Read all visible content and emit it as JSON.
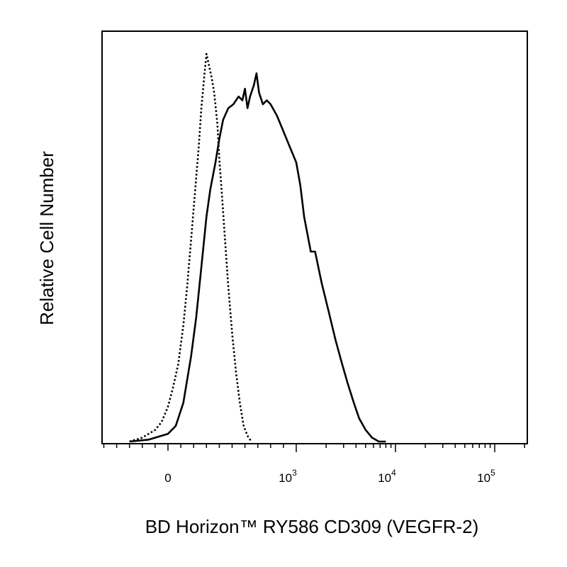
{
  "chart_data": {
    "type": "line",
    "title": "",
    "xlabel": "BD Horizon™ RY586 CD309 (VEGFR-2)",
    "ylabel": "Relative Cell Number",
    "x_scale": "biexponential",
    "x_ticks": [
      {
        "value": 0,
        "base": "0",
        "exp": ""
      },
      {
        "value": 1000,
        "base": "10",
        "exp": "3"
      },
      {
        "value": 10000,
        "base": "10",
        "exp": "4"
      },
      {
        "value": 100000,
        "base": "10",
        "exp": "5"
      }
    ],
    "y_ticks": [],
    "grid": false,
    "legend": "none",
    "series": [
      {
        "style": "dotted",
        "color": "#000000",
        "points": [
          [
            -300,
            0
          ],
          [
            -200,
            1
          ],
          [
            -100,
            3
          ],
          [
            -50,
            5
          ],
          [
            0,
            9
          ],
          [
            40,
            14
          ],
          [
            80,
            20
          ],
          [
            120,
            30
          ],
          [
            150,
            40
          ],
          [
            180,
            52
          ],
          [
            210,
            64
          ],
          [
            240,
            76
          ],
          [
            260,
            86
          ],
          [
            285,
            95
          ],
          [
            300,
            100
          ],
          [
            320,
            97
          ],
          [
            340,
            94
          ],
          [
            360,
            90
          ],
          [
            385,
            82
          ],
          [
            400,
            73
          ],
          [
            420,
            64
          ],
          [
            445,
            52
          ],
          [
            470,
            40
          ],
          [
            500,
            28
          ],
          [
            530,
            18
          ],
          [
            560,
            10
          ],
          [
            590,
            4
          ],
          [
            620,
            1.5
          ],
          [
            650,
            0
          ]
        ]
      },
      {
        "style": "solid",
        "color": "#000000",
        "points": [
          [
            -300,
            0
          ],
          [
            -150,
            0.5
          ],
          [
            0,
            2
          ],
          [
            60,
            4
          ],
          [
            120,
            10
          ],
          [
            180,
            22
          ],
          [
            220,
            32
          ],
          [
            260,
            45
          ],
          [
            300,
            58
          ],
          [
            330,
            65
          ],
          [
            370,
            72
          ],
          [
            400,
            78
          ],
          [
            430,
            83
          ],
          [
            470,
            86
          ],
          [
            510,
            87
          ],
          [
            550,
            89
          ],
          [
            580,
            88
          ],
          [
            600,
            91
          ],
          [
            620,
            86
          ],
          [
            640,
            89
          ],
          [
            670,
            92
          ],
          [
            690,
            95
          ],
          [
            710,
            90
          ],
          [
            740,
            87
          ],
          [
            770,
            88
          ],
          [
            800,
            87
          ],
          [
            850,
            84
          ],
          [
            900,
            80
          ],
          [
            950,
            76
          ],
          [
            1000,
            72
          ],
          [
            1100,
            66
          ],
          [
            1200,
            58
          ],
          [
            1400,
            49
          ],
          [
            1550,
            49
          ],
          [
            1800,
            41
          ],
          [
            2100,
            34
          ],
          [
            2500,
            26
          ],
          [
            2900,
            20
          ],
          [
            3300,
            15
          ],
          [
            3800,
            10
          ],
          [
            4300,
            6
          ],
          [
            5000,
            3
          ],
          [
            5800,
            1
          ],
          [
            6800,
            0
          ],
          [
            8000,
            0
          ]
        ]
      }
    ]
  }
}
